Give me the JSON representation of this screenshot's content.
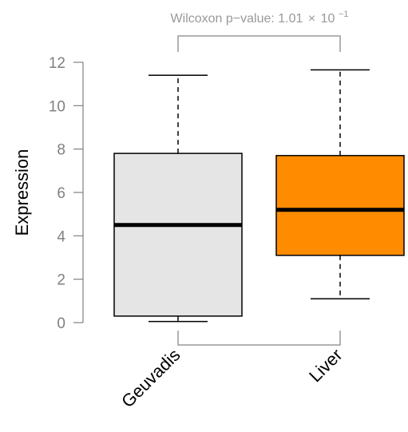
{
  "chart_data": {
    "type": "box",
    "ylabel": "Expression",
    "ylim": [
      0,
      12
    ],
    "yticks": [
      0,
      2,
      4,
      6,
      8,
      10,
      12
    ],
    "categories": [
      "Geuvadis",
      "Liver"
    ],
    "boxes": [
      {
        "category": "Geuvadis",
        "whisker_low": 0.05,
        "q1": 0.3,
        "median": 4.5,
        "q3": 7.8,
        "whisker_high": 11.4,
        "color": "#e5e5e5"
      },
      {
        "category": "Liver",
        "whisker_low": 1.1,
        "q1": 3.1,
        "median": 5.2,
        "q3": 7.7,
        "whisker_high": 11.65,
        "color": "#ff8c00"
      }
    ],
    "annotation": {
      "label_prefix": "Wilcoxon p−value: 1.01",
      "label_times": "×",
      "label_base": "10",
      "label_exponent": "−1"
    },
    "colors": {
      "axis": "#808080",
      "bracket": "#999999",
      "box_stroke": "#000000"
    }
  }
}
